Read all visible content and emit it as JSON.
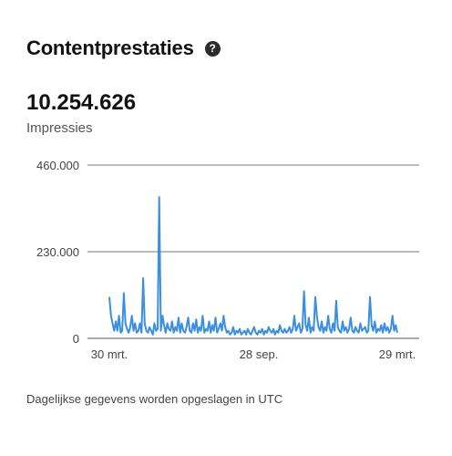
{
  "header": {
    "title": "Contentprestaties",
    "help_icon": "question-circle-icon",
    "help_glyph": "?"
  },
  "metric": {
    "value": "10.254.626",
    "label": "Impressies"
  },
  "footnote": "Dagelijkse gegevens worden opgeslagen in UTC",
  "chart_data": {
    "type": "line",
    "title": "",
    "xlabel": "",
    "ylabel": "",
    "ylim": [
      0,
      460000
    ],
    "y_ticks": [
      0,
      230000,
      460000
    ],
    "y_tick_labels": [
      "0",
      "230.000",
      "460.000"
    ],
    "x_tick_labels": [
      "30 mrt.",
      "28 sep.",
      "29 mrt."
    ],
    "grid": true,
    "line_color": "#3b8fe0",
    "series": [
      {
        "values": [
          110000,
          60000,
          40000,
          20000,
          45000,
          20000,
          60000,
          15000,
          20000,
          120000,
          40000,
          25000,
          15000,
          30000,
          60000,
          20000,
          40000,
          15000,
          20000,
          40000,
          15000,
          160000,
          40000,
          20000,
          15000,
          30000,
          20000,
          10000,
          40000,
          20000,
          25000,
          375000,
          20000,
          60000,
          35000,
          15000,
          40000,
          25000,
          20000,
          45000,
          15000,
          30000,
          20000,
          55000,
          15000,
          40000,
          20000,
          15000,
          30000,
          55000,
          20000,
          15000,
          40000,
          20000,
          50000,
          15000,
          30000,
          20000,
          60000,
          15000,
          25000,
          20000,
          45000,
          15000,
          35000,
          20000,
          55000,
          15000,
          25000,
          40000,
          20000,
          60000,
          30000,
          15000,
          20000,
          10000,
          15000,
          30000,
          10000,
          20000,
          15000,
          25000,
          10000,
          15000,
          20000,
          10000,
          25000,
          15000,
          10000,
          20000,
          30000,
          15000,
          10000,
          20000,
          15000,
          25000,
          10000,
          20000,
          15000,
          30000,
          20000,
          15000,
          25000,
          10000,
          20000,
          15000,
          35000,
          20000,
          15000,
          25000,
          15000,
          20000,
          30000,
          15000,
          25000,
          60000,
          20000,
          30000,
          40000,
          15000,
          25000,
          125000,
          35000,
          20000,
          55000,
          15000,
          30000,
          20000,
          110000,
          60000,
          30000,
          20000,
          45000,
          15000,
          30000,
          20000,
          60000,
          25000,
          15000,
          40000,
          20000,
          100000,
          30000,
          20000,
          15000,
          45000,
          20000,
          30000,
          15000,
          25000,
          55000,
          20000,
          15000,
          30000,
          20000,
          15000,
          40000,
          20000,
          25000,
          30000,
          15000,
          20000,
          110000,
          35000,
          20000,
          45000,
          15000,
          25000,
          20000,
          35000,
          15000,
          40000,
          20000,
          30000,
          15000,
          25000,
          60000,
          20000,
          35000,
          15000
        ]
      }
    ]
  }
}
